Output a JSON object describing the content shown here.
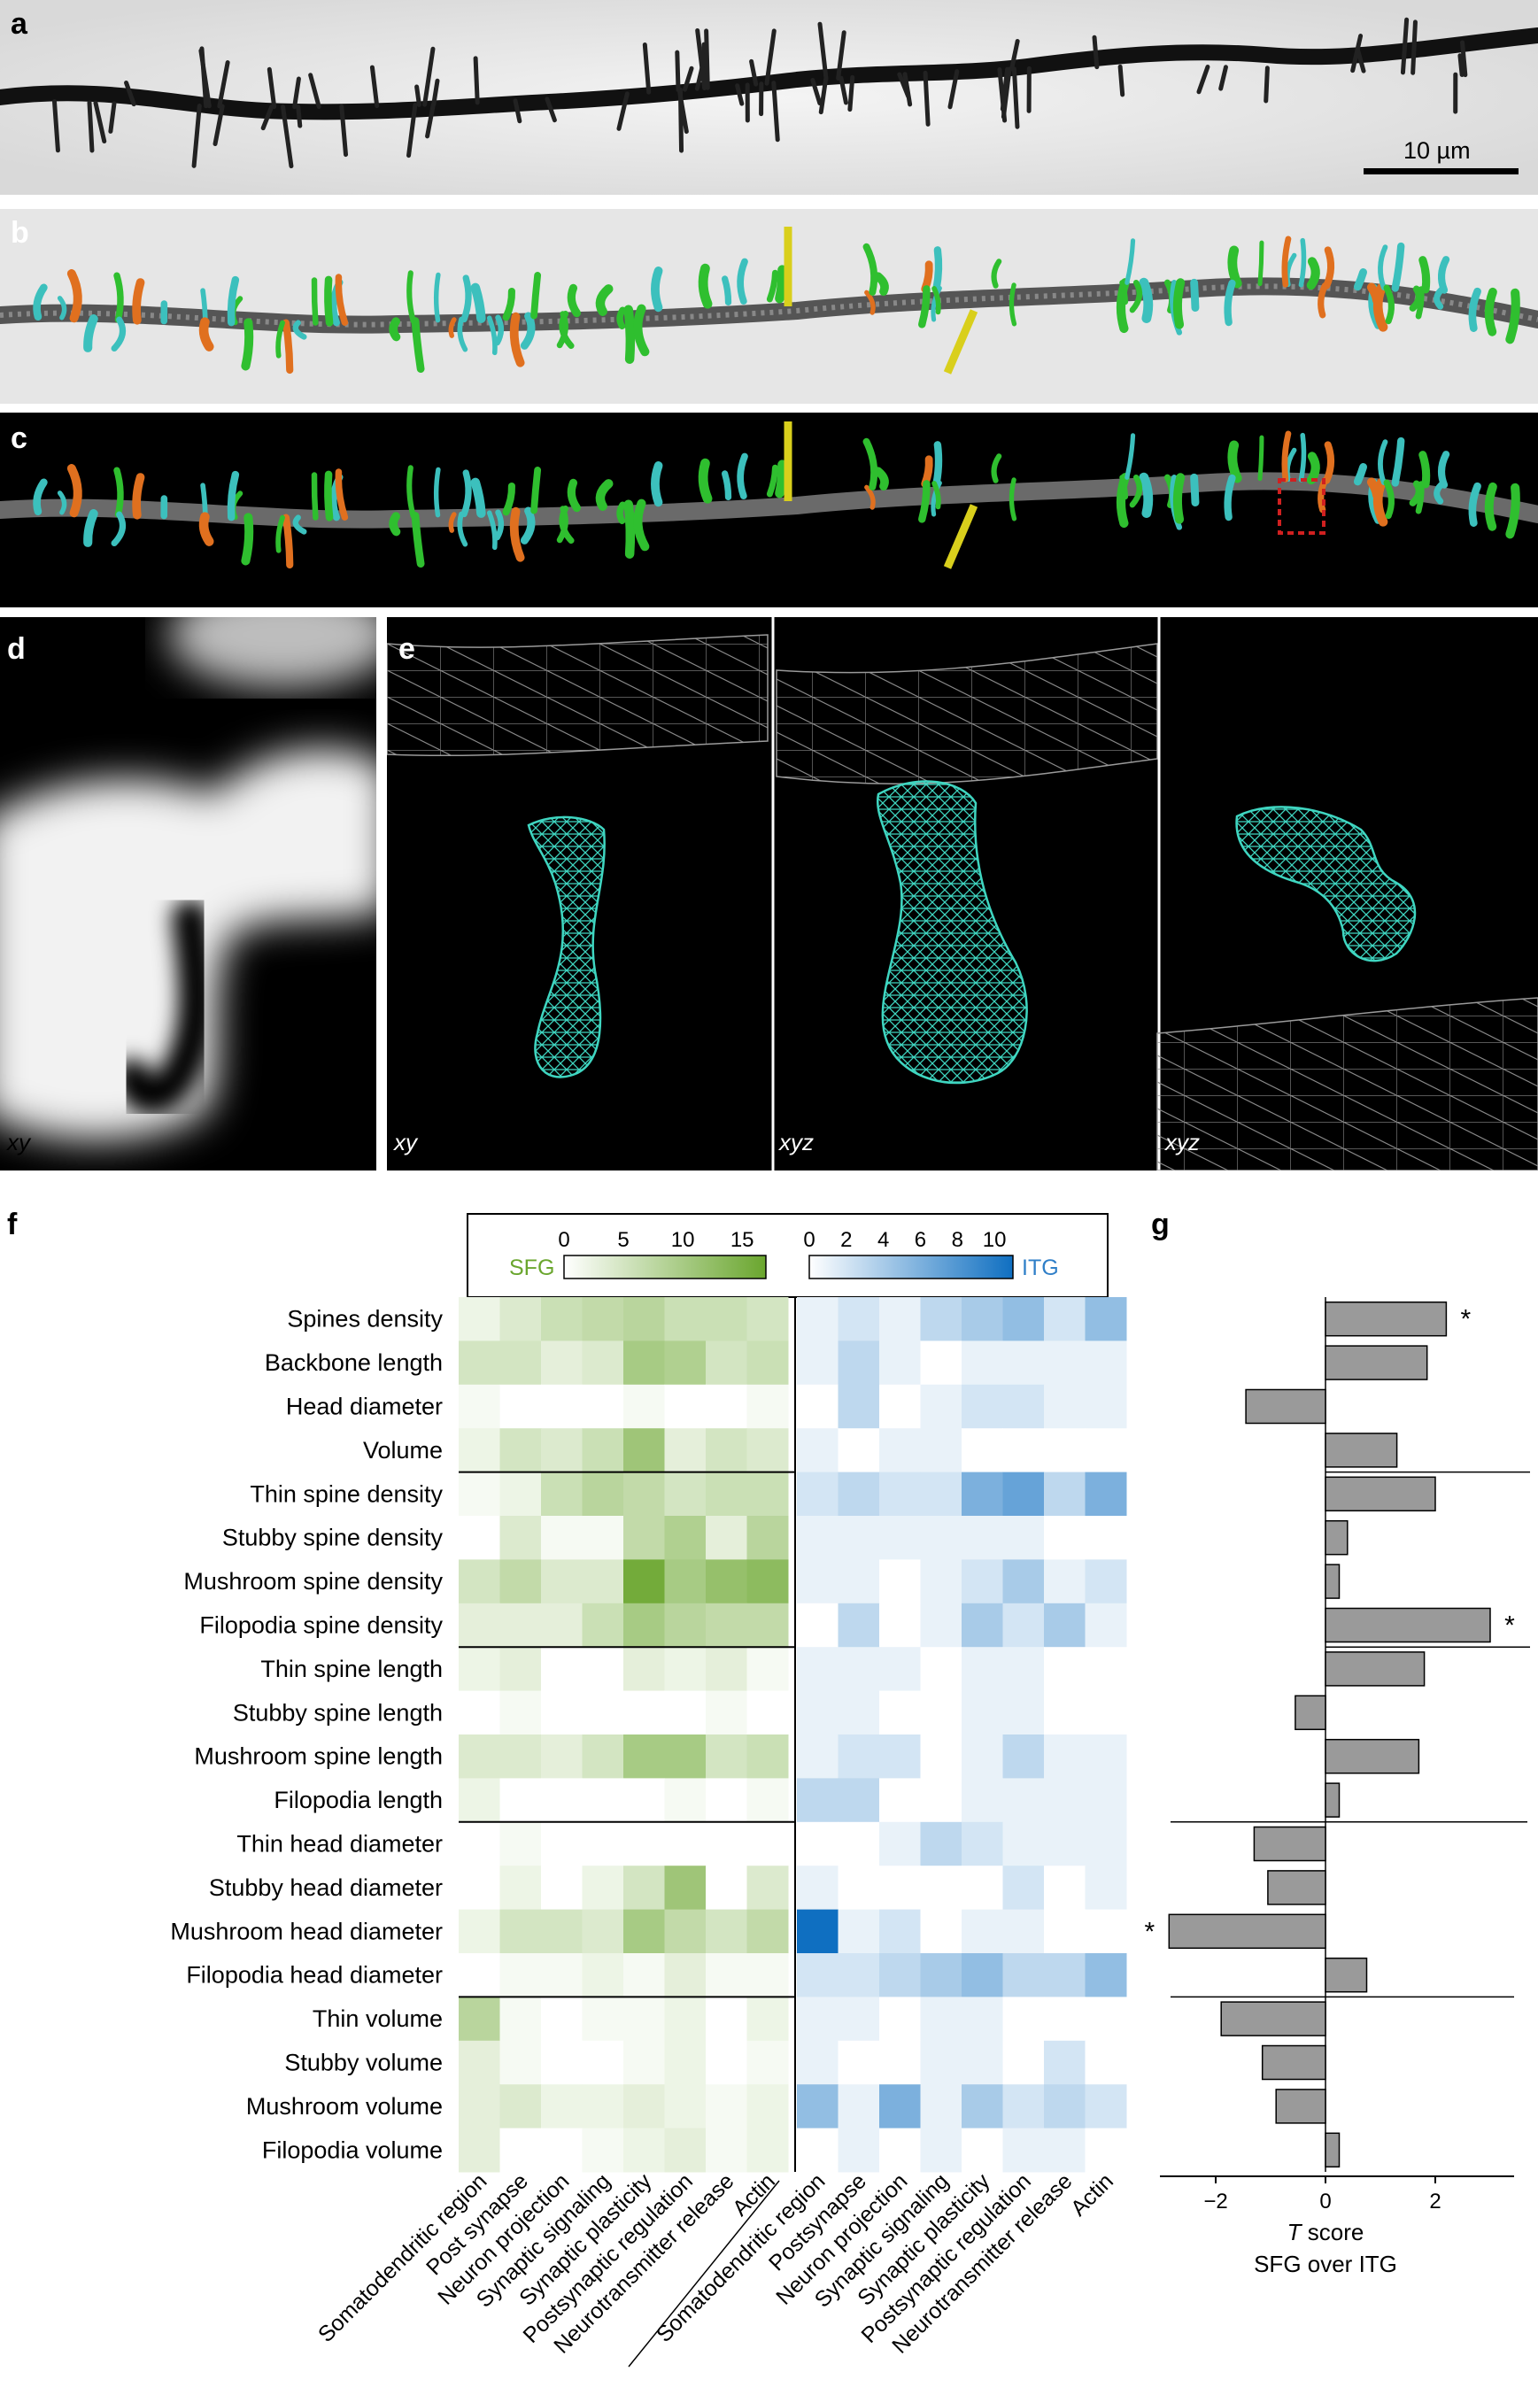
{
  "panels": {
    "a": "a",
    "b": "b",
    "c": "c",
    "d": "d",
    "e": "e",
    "f": "f",
    "g": "g"
  },
  "scale_bar": "10 µm",
  "d_view": "xy",
  "e_views": [
    "xy",
    "xyz",
    "xyz"
  ],
  "colors": {
    "green_spine": "#2fbf2f",
    "cyan_spine": "#3cc0bd",
    "orange_spine": "#e0701f",
    "yellow_spine": "#d9cf1c",
    "mesh_teal": "#3fd6c1",
    "sfg_max": "#6aa62e",
    "itg_max": "#0f6fc1",
    "bar": "#9a9a9a"
  },
  "legend": {
    "sfg_label": "SFG",
    "itg_label": "ITG",
    "sfg_ticks": [
      "0",
      "5",
      "10",
      "15"
    ],
    "itg_ticks": [
      "0",
      "2",
      "4",
      "6",
      "8",
      "10"
    ]
  },
  "chart_data": [
    {
      "type": "heatmap",
      "rows": [
        "Spines density",
        "Backbone length",
        "Head diameter",
        "Volume",
        "Thin spine density",
        "Stubby spine density",
        "Mushroom spine density",
        "Filopodia spine density",
        "Thin spine length",
        "Stubby spine length",
        "Mushroom spine length",
        "Filopodia length",
        "Thin head diameter",
        "Stubby head diameter",
        "Mushroom head diameter",
        "Filopodia head diameter",
        "Thin volume",
        "Stubby volume",
        "Mushroom volume",
        "Filopodia volume"
      ],
      "columns_sfg": [
        "Somatodendritic region",
        "Post synapse",
        "Neuron projection",
        "Synaptic signaling",
        "Synaptic plasticity",
        "Postsynaptic regulation",
        "Neurotransmitter release",
        "Actin"
      ],
      "columns_itg": [
        "Somatodendritic region",
        "Postsynapse",
        "Neuron projection",
        "Synaptic signaling",
        "Synaptic plasticity",
        "Postsynaptic regulation",
        "Neurotransmitter release",
        "Actin"
      ],
      "sfg_values": [
        [
          2,
          4,
          6,
          7,
          8,
          6,
          6,
          5
        ],
        [
          5,
          5,
          3,
          4,
          10,
          9,
          5,
          6
        ],
        [
          1,
          0,
          0,
          0,
          1,
          0,
          0,
          1
        ],
        [
          2,
          5,
          4,
          6,
          11,
          3,
          5,
          4
        ],
        [
          1,
          2,
          6,
          8,
          7,
          5,
          6,
          6
        ],
        [
          0,
          4,
          1,
          1,
          7,
          9,
          3,
          8
        ],
        [
          5,
          7,
          4,
          4,
          16,
          10,
          12,
          13
        ],
        [
          3,
          3,
          3,
          6,
          10,
          8,
          7,
          7
        ],
        [
          2,
          3,
          0,
          0,
          3,
          2,
          3,
          1
        ],
        [
          0,
          1,
          0,
          0,
          0,
          0,
          1,
          0
        ],
        [
          4,
          4,
          3,
          5,
          10,
          10,
          5,
          6
        ],
        [
          2,
          0,
          0,
          0,
          0,
          1,
          0,
          1
        ],
        [
          0,
          1,
          0,
          0,
          0,
          0,
          0,
          0
        ],
        [
          0,
          2,
          0,
          2,
          5,
          11,
          0,
          4
        ],
        [
          2,
          5,
          5,
          4,
          10,
          7,
          5,
          7
        ],
        [
          0,
          1,
          1,
          2,
          1,
          3,
          1,
          1
        ],
        [
          8,
          1,
          0,
          1,
          1,
          2,
          0,
          2
        ],
        [
          3,
          1,
          0,
          0,
          1,
          2,
          0,
          1
        ],
        [
          3,
          4,
          2,
          2,
          3,
          2,
          1,
          2
        ],
        [
          3,
          0,
          0,
          1,
          2,
          3,
          1,
          2
        ]
      ],
      "itg_values": [
        [
          1,
          2,
          1,
          3,
          4,
          5,
          2,
          5
        ],
        [
          1,
          3,
          1,
          0,
          1,
          1,
          1,
          1
        ],
        [
          0,
          3,
          0,
          1,
          2,
          2,
          1,
          1
        ],
        [
          1,
          0,
          1,
          1,
          0,
          0,
          0,
          0
        ],
        [
          2,
          3,
          2,
          2,
          6,
          7,
          3,
          6
        ],
        [
          1,
          1,
          1,
          1,
          1,
          1,
          0,
          0
        ],
        [
          1,
          1,
          0,
          1,
          2,
          4,
          1,
          2
        ],
        [
          0,
          3,
          0,
          1,
          4,
          2,
          4,
          1
        ],
        [
          1,
          1,
          1,
          0,
          1,
          1,
          0,
          0
        ],
        [
          1,
          1,
          0,
          0,
          1,
          1,
          0,
          0
        ],
        [
          1,
          2,
          2,
          0,
          1,
          3,
          1,
          1
        ],
        [
          3,
          3,
          0,
          0,
          1,
          1,
          1,
          1
        ],
        [
          0,
          0,
          1,
          3,
          2,
          1,
          1,
          1
        ],
        [
          1,
          0,
          0,
          0,
          0,
          2,
          0,
          1
        ],
        [
          11,
          1,
          2,
          0,
          1,
          1,
          0,
          0
        ],
        [
          2,
          2,
          3,
          4,
          5,
          3,
          3,
          5
        ],
        [
          1,
          1,
          0,
          1,
          1,
          0,
          0,
          0
        ],
        [
          1,
          0,
          0,
          1,
          1,
          0,
          2,
          0
        ],
        [
          5,
          1,
          6,
          1,
          4,
          2,
          3,
          2
        ],
        [
          0,
          1,
          0,
          1,
          0,
          1,
          1,
          0
        ]
      ],
      "sfg_range": [
        0,
        17
      ],
      "itg_range": [
        0,
        11
      ]
    },
    {
      "type": "bar",
      "orientation": "horizontal",
      "categories": [
        "Spines density",
        "Backbone length",
        "Head diameter",
        "Volume",
        "Thin spine density",
        "Stubby spine density",
        "Mushroom spine density",
        "Filopodia spine density",
        "Thin spine length",
        "Stubby spine length",
        "Mushroom spine length",
        "Filopodia length",
        "Thin head diameter",
        "Stubby head diameter",
        "Mushroom head diameter",
        "Filopodia head diameter",
        "Thin volume",
        "Stubby volume",
        "Mushroom volume",
        "Filopodia volume"
      ],
      "values": [
        2.2,
        1.85,
        -1.45,
        1.3,
        2.0,
        0.4,
        0.25,
        3.0,
        1.8,
        -0.55,
        1.7,
        0.25,
        -1.3,
        -1.05,
        -2.85,
        0.75,
        -1.9,
        -1.15,
        -0.9,
        0.25
      ],
      "significant": [
        "*",
        "",
        "",
        "",
        "",
        "",
        "",
        "*",
        "",
        "",
        "",
        "",
        "",
        "",
        "*",
        "",
        "",
        "",
        "",
        ""
      ],
      "xlim": [
        -3.1,
        3.6
      ],
      "xticks": [
        "−2",
        "0",
        "2"
      ],
      "xlabel_italic": "T",
      "xlabel_rest": " score",
      "xlabel_line2": "SFG over ITG"
    }
  ]
}
